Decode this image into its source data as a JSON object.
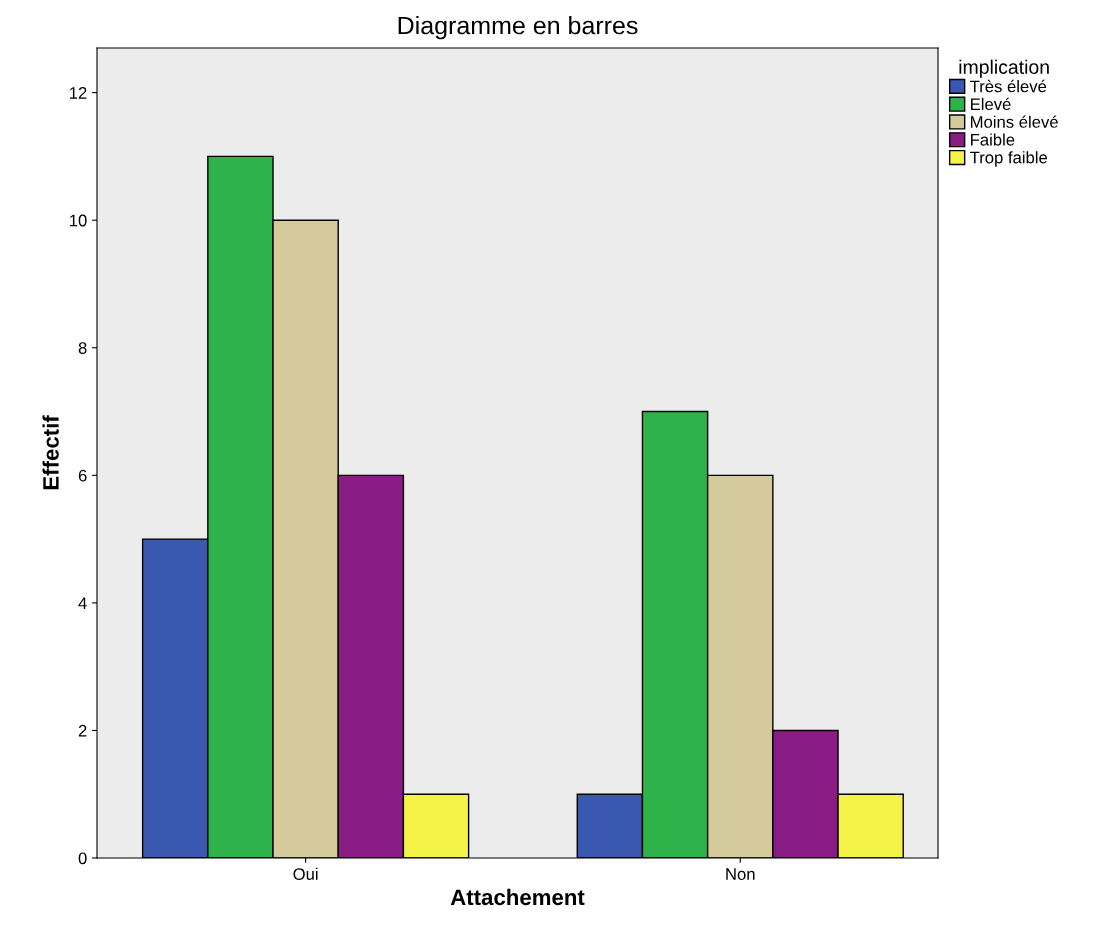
{
  "chart_data": {
    "type": "bar",
    "title": "Diagramme en barres",
    "xlabel": "Attachement",
    "ylabel": "Effectif",
    "legend_title": "implication",
    "categories": [
      "Oui",
      "Non"
    ],
    "series": [
      {
        "name": "Très élevé",
        "color": "#3a58b0",
        "values": [
          5,
          1
        ]
      },
      {
        "name": "Elevé",
        "color": "#2eb24a",
        "values": [
          11,
          7
        ]
      },
      {
        "name": "Moins élevé",
        "color": "#d5ca9b",
        "values": [
          10,
          6
        ]
      },
      {
        "name": "Faible",
        "color": "#8a1c86",
        "values": [
          6,
          2
        ]
      },
      {
        "name": "Trop faible",
        "color": "#f4f448",
        "values": [
          1,
          1
        ]
      }
    ],
    "ylim": [
      0,
      12.7
    ],
    "yticks": [
      0,
      2,
      4,
      6,
      8,
      10,
      12
    ],
    "grid": false,
    "legend": "top right"
  }
}
